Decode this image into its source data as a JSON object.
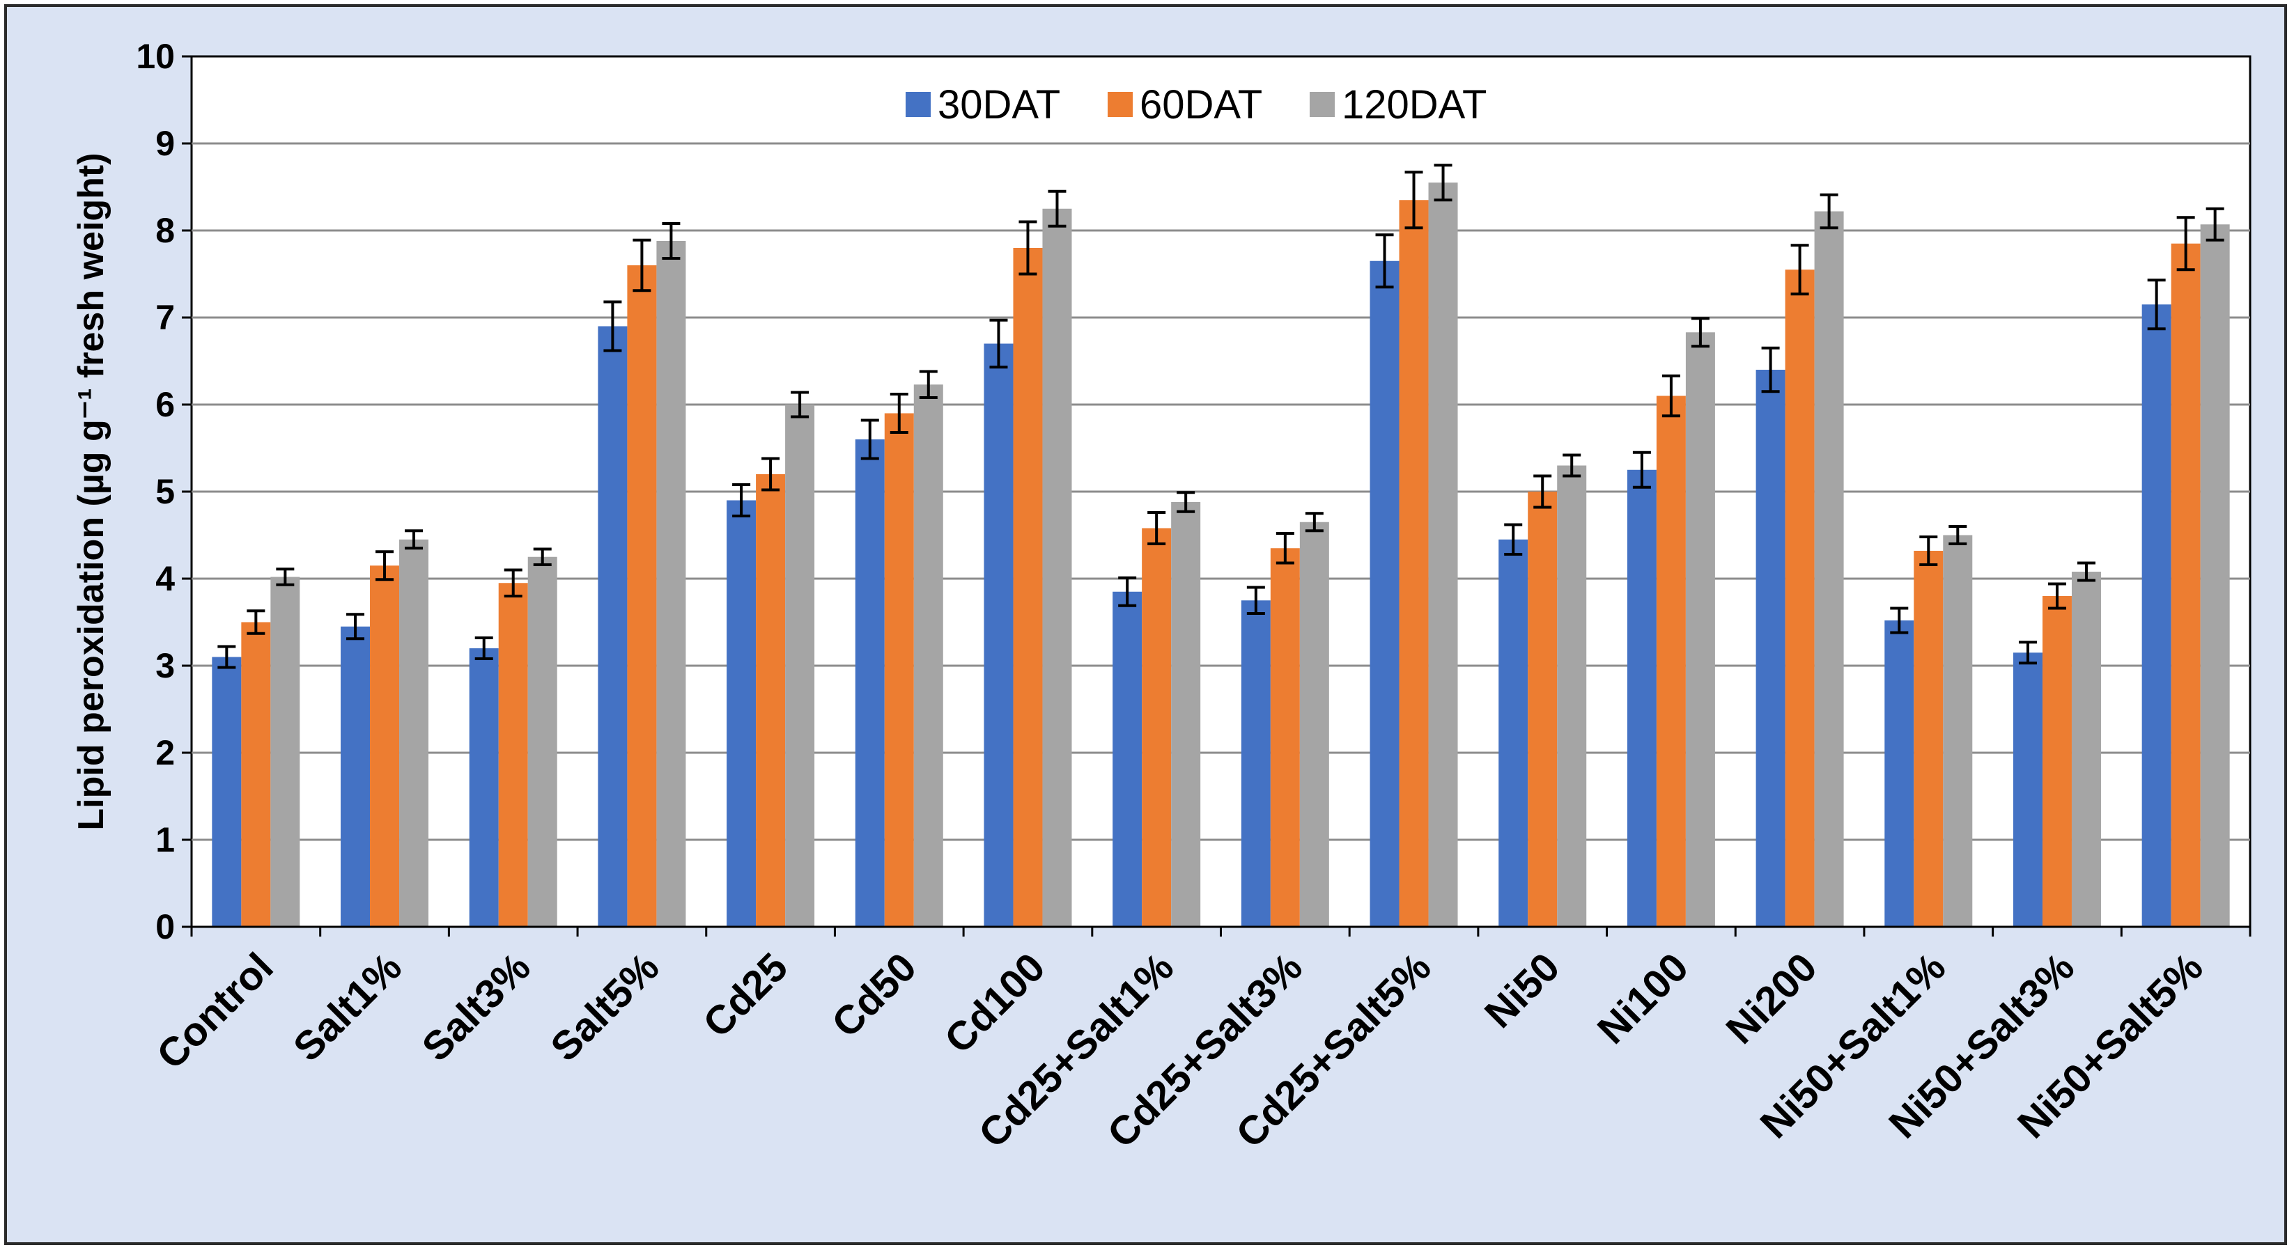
{
  "chart_data": {
    "type": "bar",
    "title": "",
    "xlabel": "",
    "ylabel": "Lipid peroxidation (µg g⁻¹ fresh weight)",
    "ylim": [
      0,
      10
    ],
    "yticks": [
      0,
      1,
      2,
      3,
      4,
      5,
      6,
      7,
      8,
      9,
      10
    ],
    "grid": true,
    "legend_position": "top-center",
    "categories": [
      "Control",
      "Salt1%",
      "Salt3%",
      "Salt5%",
      "Cd25",
      "Cd50",
      "Cd100",
      "Cd25+Salt1%",
      "Cd25+Salt3%",
      "Cd25+Salt5%",
      "Ni50",
      "Ni100",
      "Ni200",
      "Ni50+Salt1%",
      "Ni50+Salt3%",
      "Ni50+Salt5%"
    ],
    "series": [
      {
        "name": "30DAT",
        "color": "#4472c4",
        "values": [
          3.1,
          3.45,
          3.2,
          6.9,
          4.9,
          5.6,
          6.7,
          3.85,
          3.75,
          7.65,
          4.45,
          5.25,
          6.4,
          3.52,
          3.15,
          7.15
        ],
        "errors": [
          0.12,
          0.14,
          0.12,
          0.28,
          0.18,
          0.22,
          0.27,
          0.16,
          0.15,
          0.3,
          0.17,
          0.2,
          0.25,
          0.14,
          0.12,
          0.28
        ]
      },
      {
        "name": "60DAT",
        "color": "#ed7d31",
        "values": [
          3.5,
          4.15,
          3.95,
          7.6,
          5.2,
          5.9,
          7.8,
          4.58,
          4.35,
          8.35,
          5.0,
          6.1,
          7.55,
          4.32,
          3.8,
          7.85
        ],
        "errors": [
          0.13,
          0.16,
          0.15,
          0.29,
          0.18,
          0.22,
          0.3,
          0.18,
          0.17,
          0.32,
          0.18,
          0.23,
          0.28,
          0.16,
          0.14,
          0.3
        ]
      },
      {
        "name": "120DAT",
        "color": "#a5a5a5",
        "values": [
          4.02,
          4.45,
          4.25,
          7.88,
          6.0,
          6.23,
          8.25,
          4.88,
          4.65,
          8.55,
          5.3,
          6.83,
          8.22,
          4.5,
          4.08,
          8.07
        ],
        "errors": [
          0.09,
          0.1,
          0.09,
          0.2,
          0.14,
          0.15,
          0.2,
          0.11,
          0.1,
          0.2,
          0.12,
          0.16,
          0.19,
          0.1,
          0.1,
          0.18
        ]
      }
    ]
  }
}
